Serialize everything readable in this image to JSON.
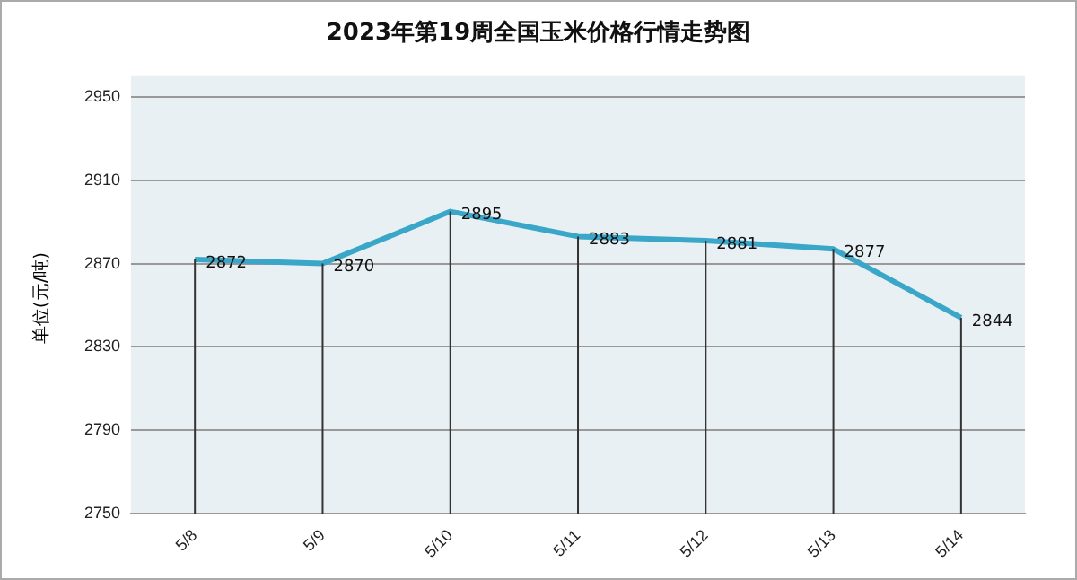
{
  "chart_data": {
    "type": "line",
    "title": "2023年第19周全国玉米价格行情走势图",
    "ylabel": "单位(元/吨)",
    "categories": [
      "5/8",
      "5/9",
      "5/10",
      "5/11",
      "5/12",
      "5/13",
      "5/14"
    ],
    "series": [
      {
        "color": "#3aa7c9",
        "values": [
          2872,
          2870,
          2895,
          2883,
          2881,
          2877,
          2844
        ]
      }
    ],
    "ylim": [
      2750,
      2960
    ],
    "yticks": [
      2750,
      2790,
      2830,
      2870,
      2910,
      2950
    ],
    "grid": "y",
    "data_labels": true,
    "marker": "none",
    "line_style": "solid",
    "legend": false
  }
}
